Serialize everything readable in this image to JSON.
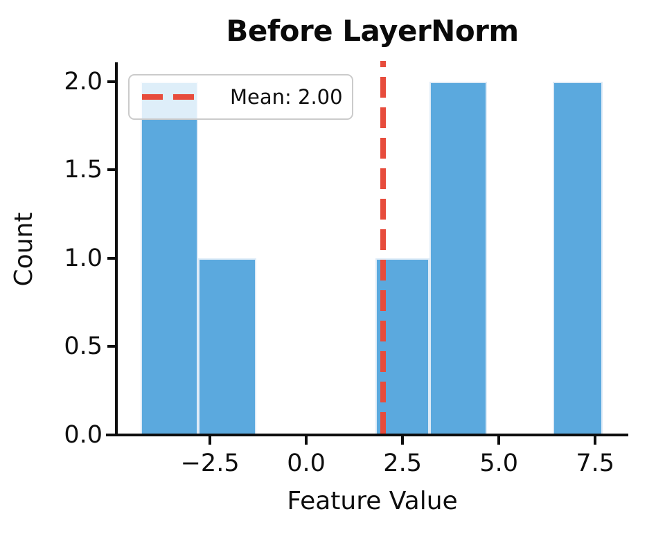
{
  "title": "Before LayerNorm",
  "legend": {
    "label": "Mean: 2.00",
    "position": "upper left",
    "line_color": "#e74c3c",
    "line_style": "dashed"
  },
  "colors": {
    "bar_fill": "#5ba9de",
    "bar_edge": "#deebf7",
    "mean_line": "#e74c3c",
    "axis": "#0d0d0d",
    "legend_border": "#cbcbcb"
  },
  "chart_data": {
    "type": "bar",
    "subtype": "histogram",
    "title": "Before LayerNorm",
    "xlabel": "Feature Value",
    "ylabel": "Count",
    "grid": false,
    "legend_position": "upper left",
    "bar_color": "#5ba9de",
    "bar_edge_color": "#deebf7",
    "xlim": [
      -4.93,
      8.36
    ],
    "ylim": [
      0,
      2.1
    ],
    "xticks": [
      {
        "v": -2.5,
        "label": "−2.5"
      },
      {
        "v": 0.0,
        "label": "0.0"
      },
      {
        "v": 2.5,
        "label": "2.5"
      },
      {
        "v": 5.0,
        "label": "5.0"
      },
      {
        "v": 7.5,
        "label": "7.5"
      }
    ],
    "yticks": [
      {
        "v": 0.0,
        "label": "0.0"
      },
      {
        "v": 0.5,
        "label": "0.5"
      },
      {
        "v": 1.0,
        "label": "1.0"
      },
      {
        "v": 1.5,
        "label": "1.5"
      },
      {
        "v": 2.0,
        "label": "2.0"
      }
    ],
    "bins": [
      {
        "x0": -4.3,
        "x1": -2.8,
        "count": 2
      },
      {
        "x0": -2.8,
        "x1": -1.3,
        "count": 1
      },
      {
        "x0": 1.8,
        "x1": 3.2,
        "count": 1
      },
      {
        "x0": 3.2,
        "x1": 4.7,
        "count": 2
      },
      {
        "x0": 6.4,
        "x1": 7.7,
        "count": 2
      }
    ],
    "mean_line": {
      "value": 2.0,
      "label": "Mean: 2.00",
      "color": "#e74c3c",
      "style": "dashed",
      "linewidth": 3
    }
  }
}
